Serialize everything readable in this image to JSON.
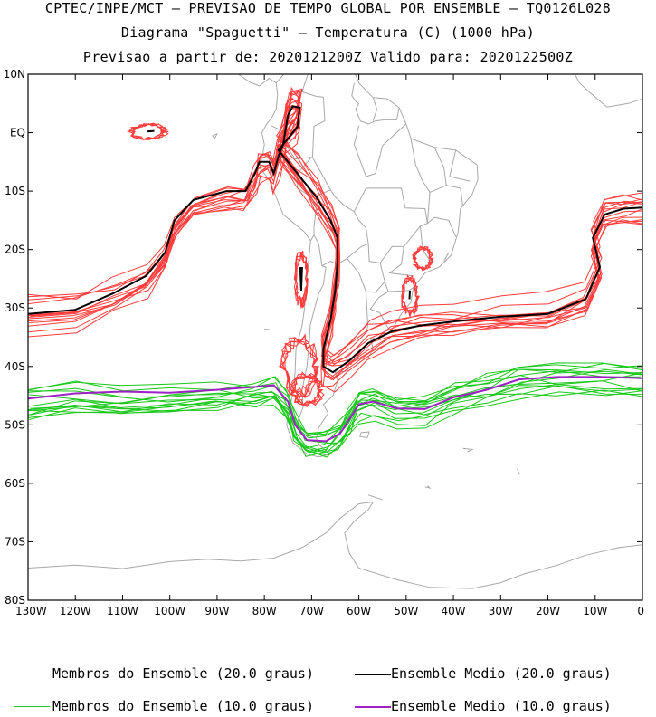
{
  "header": {
    "line1": "CPTEC/INPE/MCT — PREVISAO DE TEMPO GLOBAL POR ENSEMBLE — TQ0126L028",
    "line2": "Diagrama \"Spaguetti\" — Temperatura (C) (1000 hPa)",
    "line3": "Previsao a partir de: 2020121200Z  Valido para: 2020122500Z"
  },
  "chart_data": {
    "type": "spaghetti-map",
    "lon_range": [
      -130,
      0
    ],
    "lat_range": [
      -80,
      10
    ],
    "lat_ticks": [
      {
        "value": 10,
        "label": "10N"
      },
      {
        "value": 0,
        "label": "EQ"
      },
      {
        "value": -10,
        "label": "10S"
      },
      {
        "value": -20,
        "label": "20S"
      },
      {
        "value": -30,
        "label": "30S"
      },
      {
        "value": -40,
        "label": "40S"
      },
      {
        "value": -50,
        "label": "50S"
      },
      {
        "value": -60,
        "label": "60S"
      },
      {
        "value": -70,
        "label": "70S"
      },
      {
        "value": -80,
        "label": "80S"
      }
    ],
    "lon_ticks": [
      {
        "value": -130,
        "label": "130W"
      },
      {
        "value": -120,
        "label": "120W"
      },
      {
        "value": -110,
        "label": "110W"
      },
      {
        "value": -100,
        "label": "100W"
      },
      {
        "value": -90,
        "label": "90W"
      },
      {
        "value": -80,
        "label": "80W"
      },
      {
        "value": -70,
        "label": "70W"
      },
      {
        "value": -60,
        "label": "60W"
      },
      {
        "value": -50,
        "label": "50W"
      },
      {
        "value": -40,
        "label": "40W"
      },
      {
        "value": -30,
        "label": "30W"
      },
      {
        "value": -20,
        "label": "20W"
      },
      {
        "value": -10,
        "label": "10W"
      },
      {
        "value": 0,
        "label": "0"
      }
    ],
    "series": [
      {
        "name": "Membros do Ensemble (20.0 graus)",
        "color": "#ff3b3b",
        "role": "members",
        "contour_c": 20.0,
        "member_count": 14
      },
      {
        "name": "Ensemble Medio (20.0 graus)",
        "color": "#000000",
        "role": "mean",
        "contour_c": 20.0
      },
      {
        "name": "Membros do Ensemble (10.0 graus)",
        "color": "#19c819",
        "role": "members",
        "contour_c": 10.0,
        "member_count": 14
      },
      {
        "name": "Ensemble Medio (10.0 graus)",
        "color": "#a020c8",
        "role": "mean",
        "contour_c": 10.0
      }
    ],
    "mean_20c": [
      [
        -130,
        -31
      ],
      [
        -120,
        -30.3
      ],
      [
        -112,
        -27.5
      ],
      [
        -105,
        -24.5
      ],
      [
        -101,
        -20.5
      ],
      [
        -99,
        -15
      ],
      [
        -95,
        -11.5
      ],
      [
        -88,
        -10
      ],
      [
        -84,
        -10
      ],
      [
        -82,
        -7
      ],
      [
        -81,
        -5
      ],
      [
        -79,
        -5
      ],
      [
        -78,
        -7
      ],
      [
        -77,
        -4
      ],
      [
        -76,
        -2
      ],
      [
        -75,
        3
      ],
      [
        -74,
        4.5
      ],
      [
        -72.5,
        4.3
      ],
      [
        -73,
        1
      ],
      [
        -75,
        -1
      ],
      [
        -77,
        -3
      ],
      [
        -76,
        -4
      ],
      [
        -73,
        -7
      ],
      [
        -69,
        -11
      ],
      [
        -66,
        -15
      ],
      [
        -64.5,
        -18
      ],
      [
        -64.5,
        -22
      ],
      [
        -65,
        -27
      ],
      [
        -66,
        -32
      ],
      [
        -67.5,
        -37
      ],
      [
        -67.5,
        -40
      ],
      [
        -65.5,
        -41
      ],
      [
        -62,
        -39
      ],
      [
        -58,
        -36
      ],
      [
        -53,
        -34
      ],
      [
        -47,
        -33
      ],
      [
        -40,
        -32.3
      ],
      [
        -30,
        -31.5
      ],
      [
        -20,
        -31
      ],
      [
        -12,
        -28.5
      ],
      [
        -9,
        -23
      ],
      [
        -10.5,
        -18
      ],
      [
        -8,
        -14
      ],
      [
        -4,
        -13
      ],
      [
        0,
        -12.8
      ]
    ],
    "mean_10c": [
      [
        -130,
        -45.5
      ],
      [
        -120,
        -44.6
      ],
      [
        -110,
        -44.3
      ],
      [
        -100,
        -44.5
      ],
      [
        -90,
        -44
      ],
      [
        -82,
        -43.5
      ],
      [
        -78,
        -43.2
      ],
      [
        -75,
        -46
      ],
      [
        -73.5,
        -50
      ],
      [
        -71,
        -52.6
      ],
      [
        -67,
        -52.8
      ],
      [
        -64,
        -51.5
      ],
      [
        -62,
        -49
      ],
      [
        -60,
        -46.5
      ],
      [
        -57,
        -46
      ],
      [
        -52,
        -47.2
      ],
      [
        -46,
        -47.3
      ],
      [
        -40,
        -45.3
      ],
      [
        -33,
        -44
      ],
      [
        -26,
        -42.2
      ],
      [
        -18,
        -41.8
      ],
      [
        -8,
        -41.8
      ],
      [
        0,
        -42
      ]
    ]
  },
  "legend": [
    {
      "label": "Membros do Ensemble (20.0 graus)",
      "color": "#ff3b3b"
    },
    {
      "label": "Ensemble Medio (20.0 graus)",
      "color": "#000000"
    },
    {
      "label": "Membros do Ensemble (10.0 graus)",
      "color": "#19c819"
    },
    {
      "label": "Ensemble Medio (10.0 graus)",
      "color": "#a020c8"
    }
  ]
}
